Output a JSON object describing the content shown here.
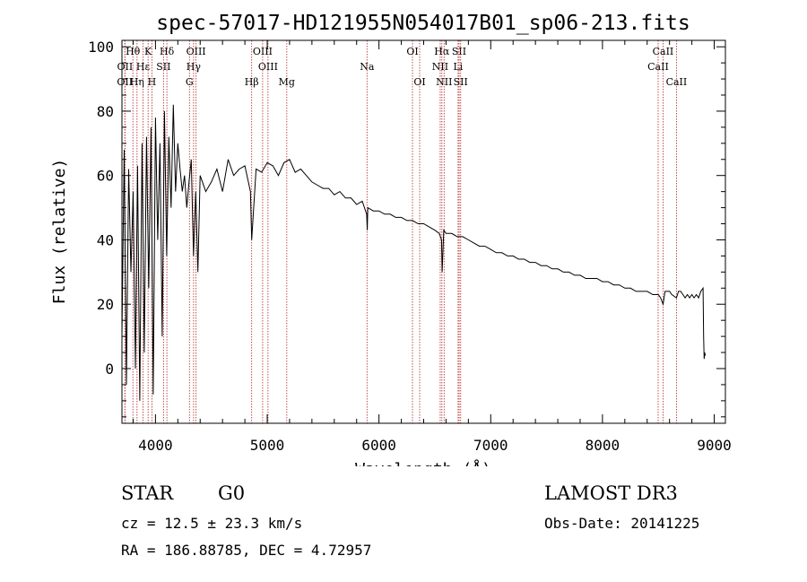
{
  "chart_data": {
    "type": "line",
    "title": "spec-57017-HD121955N054017B01_sp06-213.fits",
    "xlabel": "Wavelength (Å)",
    "ylabel": "Flux (relative)",
    "xlim": [
      3700,
      9100
    ],
    "ylim": [
      -17,
      102
    ],
    "xticks": [
      4000,
      5000,
      6000,
      7000,
      8000,
      9000
    ],
    "yticks": [
      0,
      20,
      40,
      60,
      80,
      100
    ],
    "series": [
      {
        "name": "spectrum",
        "x": [
          3700,
          3720,
          3740,
          3760,
          3780,
          3800,
          3820,
          3840,
          3860,
          3880,
          3900,
          3920,
          3940,
          3960,
          3980,
          4000,
          4020,
          4040,
          4060,
          4080,
          4100,
          4120,
          4140,
          4160,
          4180,
          4200,
          4220,
          4240,
          4260,
          4280,
          4300,
          4320,
          4340,
          4360,
          4380,
          4400,
          4450,
          4500,
          4550,
          4600,
          4650,
          4700,
          4750,
          4800,
          4850,
          4861,
          4900,
          4950,
          5000,
          5050,
          5100,
          5150,
          5200,
          5250,
          5300,
          5350,
          5400,
          5450,
          5500,
          5550,
          5600,
          5650,
          5700,
          5750,
          5800,
          5850,
          5890,
          5895,
          5900,
          5950,
          6000,
          6050,
          6100,
          6150,
          6200,
          6250,
          6300,
          6350,
          6400,
          6450,
          6500,
          6540,
          6560,
          6565,
          6580,
          6600,
          6650,
          6700,
          6750,
          6800,
          6850,
          6900,
          6950,
          7000,
          7050,
          7100,
          7150,
          7200,
          7250,
          7300,
          7350,
          7400,
          7450,
          7500,
          7550,
          7600,
          7650,
          7700,
          7750,
          7800,
          7850,
          7900,
          7950,
          8000,
          8050,
          8100,
          8150,
          8200,
          8250,
          8300,
          8350,
          8400,
          8450,
          8500,
          8520,
          8542,
          8560,
          8600,
          8620,
          8662,
          8680,
          8700,
          8720,
          8740,
          8760,
          8780,
          8800,
          8820,
          8840,
          8860,
          8880,
          8900,
          8905,
          8910,
          8915,
          8920
        ],
        "values": [
          10,
          68,
          -5,
          62,
          30,
          55,
          0,
          63,
          -10,
          70,
          5,
          72,
          25,
          75,
          -8,
          78,
          40,
          70,
          10,
          80,
          35,
          72,
          50,
          82,
          55,
          70,
          62,
          55,
          60,
          50,
          58,
          65,
          35,
          55,
          30,
          60,
          55,
          58,
          62,
          55,
          65,
          60,
          62,
          63,
          55,
          40,
          62,
          61,
          64,
          63,
          60,
          64,
          65,
          61,
          62,
          60,
          58,
          57,
          56,
          56,
          54,
          55,
          53,
          53,
          51,
          52,
          48,
          43,
          50,
          49,
          49,
          48,
          48,
          47,
          47,
          46,
          46,
          45,
          45,
          44,
          43,
          42,
          40,
          30,
          43,
          42,
          42,
          41,
          41,
          40,
          39,
          38,
          38,
          37,
          36,
          36,
          35,
          35,
          34,
          34,
          33,
          33,
          32,
          32,
          31,
          31,
          30,
          30,
          29,
          29,
          28,
          28,
          28,
          27,
          27,
          26,
          26,
          25,
          25,
          24,
          24,
          24,
          23,
          23,
          22,
          20,
          24,
          24,
          23,
          22,
          24,
          24,
          23,
          22,
          23,
          22,
          23,
          22,
          23,
          22,
          24,
          25,
          10,
          3,
          5,
          4
        ]
      }
    ],
    "lines": [
      {
        "label": "Hθ",
        "row": 1,
        "x": 3798
      },
      {
        "label": "K",
        "row": 1,
        "x": 3934
      },
      {
        "label": "Hδ",
        "row": 1,
        "x": 4102
      },
      {
        "label": "OIII",
        "row": 1,
        "x": 4363
      },
      {
        "label": "OIII",
        "row": 1,
        "x": 4959
      },
      {
        "label": "OI",
        "row": 1,
        "x": 6300
      },
      {
        "label": "Hα",
        "row": 1,
        "x": 6563
      },
      {
        "label": "SII",
        "row": 1,
        "x": 6717
      },
      {
        "label": "CaII",
        "row": 1,
        "x": 8542
      },
      {
        "label": "OII",
        "row": 2,
        "x": 3727
      },
      {
        "label": "Hε",
        "row": 2,
        "x": 3889
      },
      {
        "label": "SII",
        "row": 2,
        "x": 4072
      },
      {
        "label": "Hγ",
        "row": 2,
        "x": 4341
      },
      {
        "label": "OIII",
        "row": 2,
        "x": 5007
      },
      {
        "label": "Na",
        "row": 2,
        "x": 5893
      },
      {
        "label": "NII",
        "row": 2,
        "x": 6548
      },
      {
        "label": "Li",
        "row": 2,
        "x": 6708
      },
      {
        "label": "CaII",
        "row": 2,
        "x": 8498
      },
      {
        "label": "OII",
        "row": 3,
        "x": 3726
      },
      {
        "label": "Hη",
        "row": 3,
        "x": 3835
      },
      {
        "label": "H",
        "row": 3,
        "x": 3968
      },
      {
        "label": "G",
        "row": 3,
        "x": 4304
      },
      {
        "label": "Hβ",
        "row": 3,
        "x": 4861
      },
      {
        "label": "Mg",
        "row": 3,
        "x": 5175
      },
      {
        "label": "OI",
        "row": 3,
        "x": 6364
      },
      {
        "label": "NII",
        "row": 3,
        "x": 6583
      },
      {
        "label": "SII",
        "row": 3,
        "x": 6731
      },
      {
        "label": "CaII",
        "row": 3,
        "x": 8662
      }
    ]
  },
  "info": {
    "object_class": "STAR",
    "subclass": "G0",
    "survey": "LAMOST DR3",
    "cz": "cz = 12.5 ± 23.3 km/s",
    "obs_date": "Obs-Date: 20141225",
    "coords": "RA = 186.88785, DEC =    4.72957"
  },
  "colors": {
    "spectrum": "#000000",
    "line_marker": "#b22222",
    "axes": "#000000"
  }
}
